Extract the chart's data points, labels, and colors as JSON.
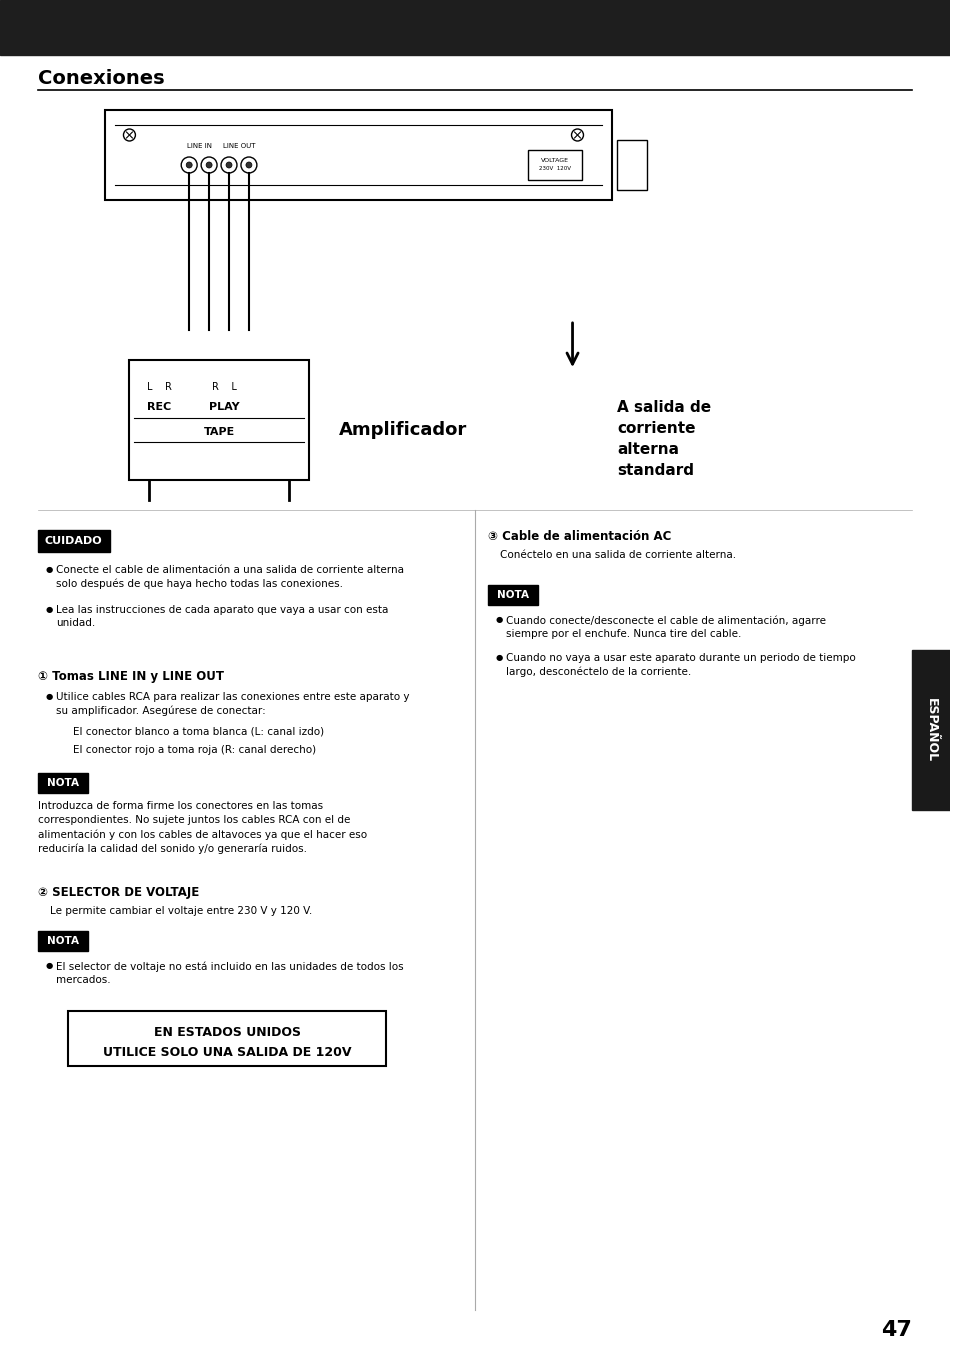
{
  "title": "Conexiones",
  "bg_color": "#ffffff",
  "header_bg": "#1e1e1e",
  "page_number": "47",
  "sidebar_text": "ESPAÑOL",
  "sections": {
    "cuidado_label": "CUIDADO",
    "cuidado_bullets": [
      "Conecte el cable de alimentación a una salida de corriente alterna\nsolo después de que haya hecho todas las conexiones.",
      "Lea las instrucciones de cada aparato que vaya a usar con esta\nunidad."
    ],
    "sec1_title": "① Tomas LINE IN y LINE OUT",
    "sec1_bullets": [
      "Utilice cables RCA para realizar las conexiones entre este aparato y\nsu amplificador. Asegúrese de conectar:"
    ],
    "sec1_indented": [
      "El conector blanco a toma blanca (L: canal izdo)",
      "El conector rojo a toma roja (R: canal derecho)"
    ],
    "nota1_label": "NOTA",
    "nota1_text": "Introduzca de forma firme los conectores en las tomas\ncorrespondientes. No sujete juntos los cables RCA con el de\nalimentación y con los cables de altavoces ya que el hacer eso\nreduciría la calidad del sonido y/o generaría ruidos.",
    "sec2_title": "② SELECTOR DE VOLTAJE",
    "sec2_text": "Le permite cambiar el voltaje entre 230 V y 120 V.",
    "nota2_label": "NOTA",
    "nota2_bullets": [
      "El selector de voltaje no está incluido en las unidades de todos los\nmercados."
    ],
    "box_line1": "EN ESTADOS UNIDOS",
    "box_line2": "UTILICE SOLO UNA SALIDA DE 120V",
    "sec3_title": "③ Cable de alimentación AC",
    "sec3_text": "Conéctelo en una salida de corriente alterna.",
    "nota3_label": "NOTA",
    "nota3_bullets": [
      "Cuando conecte/desconecte el cable de alimentación, agarre\nsiempre por el enchufe. Nunca tire del cable.",
      "Cuando no vaya a usar este aparato durante un periodo de tiempo\nlargo, desconéctelo de la corriente."
    ],
    "amplificador_label": "Amplificador",
    "ac_label": "A salida de\ncorriente\nalterna\nstandard"
  }
}
